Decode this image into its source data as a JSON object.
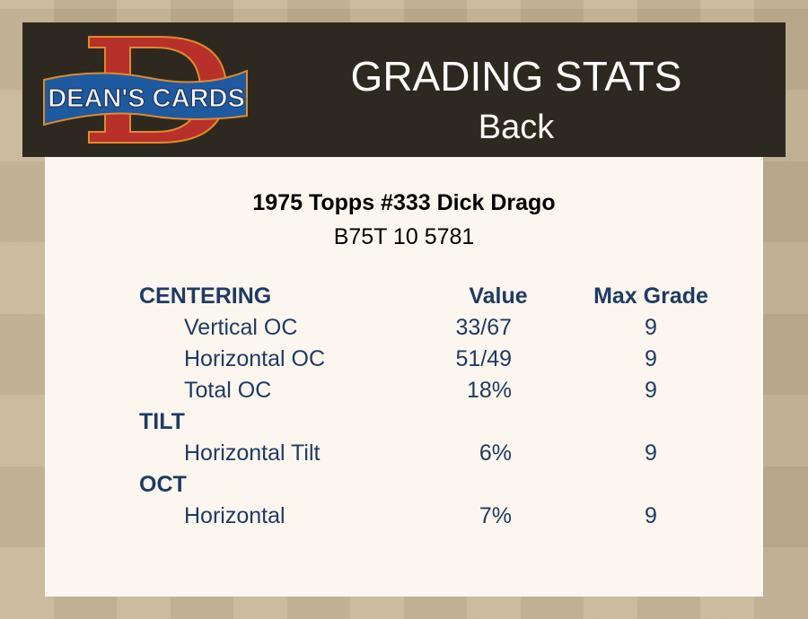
{
  "logo": {
    "text": "DEAN'S CARDS",
    "letter": "D"
  },
  "header": {
    "title": "GRADING STATS",
    "subtitle": "Back"
  },
  "card": {
    "name": "1975 Topps #333 Dick Drago",
    "cert": "B75T 10 5781"
  },
  "columns": {
    "value": "Value",
    "max_grade": "Max Grade"
  },
  "sections": [
    {
      "title": "CENTERING",
      "rows": [
        {
          "label": "Vertical OC",
          "value": "33/67",
          "max": "9"
        },
        {
          "label": "Horizontal OC",
          "value": "51/49",
          "max": "9"
        },
        {
          "label": "Total OC",
          "value": "18%",
          "max": "9"
        }
      ]
    },
    {
      "title": "TILT",
      "rows": [
        {
          "label": "Horizontal Tilt",
          "value": "6%",
          "max": "9"
        }
      ]
    },
    {
      "title": "OCT",
      "rows": [
        {
          "label": "Horizontal",
          "value": "7%",
          "max": "9"
        }
      ]
    }
  ],
  "colors": {
    "text": "#1f3a66",
    "header_bg": "#2e2920",
    "panel_bg": "#fcf7ee"
  }
}
